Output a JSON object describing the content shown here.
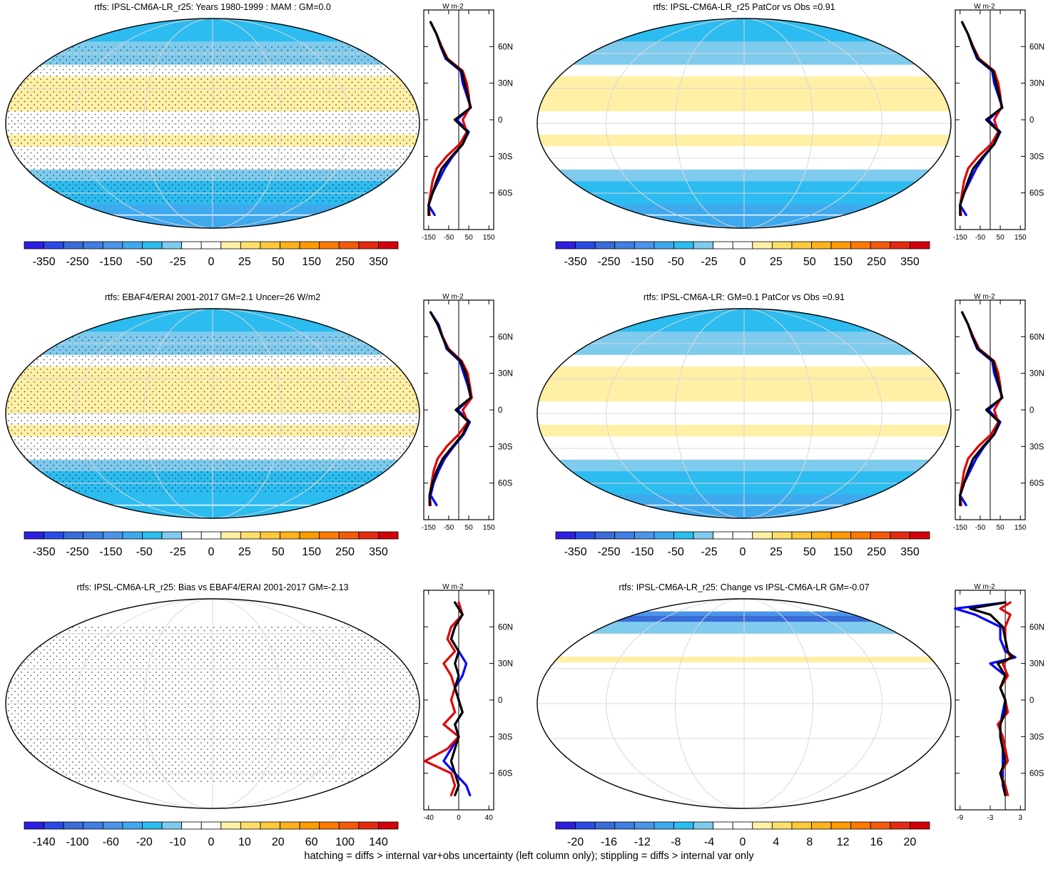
{
  "footer": "hatching = diffs > internal var+obs uncertainty (left column only); stippling = diffs > internal var only",
  "colormap": [
    "#2d1ee0",
    "#2a4ae6",
    "#3a6cd8",
    "#3f7fe4",
    "#4a95ea",
    "#3fa9ee",
    "#2cbcf0",
    "#7fcbee",
    "#ffffff",
    "#ffffff",
    "#fff0a6",
    "#ffdf6a",
    "#ffc93a",
    "#ffb21a",
    "#ff9a00",
    "#ff7a00",
    "#f45a0a",
    "#e52a12",
    "#d4000c"
  ],
  "latitude_ticks": [
    "60N",
    "30N",
    "0",
    "30S",
    "60S"
  ],
  "profile_unit": "W m-2",
  "charts": [
    {
      "title": "rtfs: IPSL-CM6A-LR_r25: Years 1980-1999 : MAM : GM=0.0",
      "colorbar_labels": [
        "-350",
        "-250",
        "-150",
        "-50",
        "-25",
        "0",
        "25",
        "50",
        "150",
        "250",
        "350"
      ],
      "profile_ticks": [
        "-150",
        "-50",
        "50",
        "150"
      ],
      "chart_data": {
        "type": "heatmap",
        "field": "rtfs",
        "overlay": "stippling and hatching",
        "zonal_mean": {
          "lat": [
            80,
            70,
            60,
            50,
            40,
            30,
            20,
            10,
            0,
            -10,
            -20,
            -30,
            -40,
            -50,
            -60,
            -70,
            -78
          ],
          "series": [
            {
              "name": "",
              "color": "#0000ff",
              "values": [
                -140,
                -110,
                -90,
                -65,
                10,
                20,
                40,
                60,
                -10,
                50,
                20,
                -30,
                -70,
                -100,
                -130,
                -150,
                -120
              ]
            },
            {
              "name": "",
              "color": "#e00000",
              "values": [
                -140,
                -110,
                -85,
                -55,
                20,
                40,
                50,
                55,
                20,
                40,
                5,
                -60,
                -110,
                -130,
                -140,
                -150,
                -145
              ]
            },
            {
              "name": "",
              "color": "#000000",
              "values": [
                -140,
                -110,
                -88,
                -60,
                15,
                30,
                45,
                60,
                -20,
                45,
                20,
                -35,
                -85,
                -110,
                -130,
                -150,
                -150
              ]
            }
          ]
        },
        "map_field": {
          "equatorial_band": 70,
          "polar": -240
        }
      }
    },
    {
      "title": "rtfs: IPSL-CM6A-LR_r25 PatCor vs Obs =0.91",
      "colorbar_labels": [
        "-350",
        "-250",
        "-150",
        "-50",
        "-25",
        "0",
        "25",
        "50",
        "150",
        "250",
        "350"
      ],
      "profile_ticks": [
        "-150",
        "-50",
        "50",
        "150"
      ],
      "chart_data": {
        "type": "heatmap",
        "field": "rtfs",
        "overlay": "none",
        "zonal_mean": {
          "lat": [
            80,
            70,
            60,
            50,
            40,
            30,
            20,
            10,
            0,
            -10,
            -20,
            -30,
            -40,
            -50,
            -60,
            -70,
            -78
          ],
          "series": [
            {
              "name": "",
              "color": "#0000ff",
              "values": [
                -140,
                -110,
                -90,
                -65,
                10,
                20,
                40,
                60,
                -10,
                50,
                20,
                -30,
                -70,
                -100,
                -130,
                -150,
                -120
              ]
            },
            {
              "name": "",
              "color": "#e00000",
              "values": [
                -140,
                -110,
                -85,
                -55,
                20,
                40,
                50,
                55,
                20,
                40,
                5,
                -60,
                -110,
                -130,
                -140,
                -150,
                -145
              ]
            },
            {
              "name": "",
              "color": "#000000",
              "values": [
                -140,
                -110,
                -88,
                -60,
                15,
                30,
                45,
                60,
                -20,
                45,
                20,
                -35,
                -85,
                -110,
                -130,
                -150,
                -150
              ]
            }
          ]
        },
        "map_field": {
          "equatorial_band": 70,
          "polar": -240
        }
      }
    },
    {
      "title": "rtfs: EBAF4/ERAI 2001-2017 GM=2.1 Uncer=26 W/m2",
      "colorbar_labels": [
        "-350",
        "-250",
        "-150",
        "-50",
        "-25",
        "0",
        "25",
        "50",
        "150",
        "250",
        "350"
      ],
      "profile_ticks": [
        "-150",
        "-50",
        "50",
        "150"
      ],
      "chart_data": {
        "type": "heatmap",
        "field": "rtfs",
        "overlay": "stippling and hatching",
        "zonal_mean": {
          "lat": [
            80,
            70,
            60,
            50,
            40,
            30,
            20,
            10,
            0,
            -10,
            -20,
            -30,
            -40,
            -50,
            -60,
            -70,
            -78
          ],
          "series": [
            {
              "name": "",
              "color": "#0000ff",
              "values": [
                -140,
                -100,
                -80,
                -60,
                5,
                25,
                45,
                60,
                -5,
                55,
                25,
                -25,
                -70,
                -100,
                -125,
                -140,
                -110
              ]
            },
            {
              "name": "",
              "color": "#e00000",
              "values": [
                -140,
                -105,
                -80,
                -50,
                15,
                45,
                55,
                65,
                20,
                45,
                0,
                -60,
                -105,
                -125,
                -135,
                -145,
                -140
              ]
            },
            {
              "name": "",
              "color": "#000000",
              "values": [
                -140,
                -105,
                -82,
                -55,
                10,
                35,
                50,
                60,
                -15,
                50,
                20,
                -30,
                -80,
                -110,
                -130,
                -145,
                -145
              ]
            }
          ]
        },
        "map_field": {
          "equatorial_band": 75,
          "polar": -240
        }
      }
    },
    {
      "title": "rtfs: IPSL-CM6A-LR: GM=0.1 PatCor vs Obs =0.91",
      "colorbar_labels": [
        "-350",
        "-250",
        "-150",
        "-50",
        "-25",
        "0",
        "25",
        "50",
        "150",
        "250",
        "350"
      ],
      "profile_ticks": [
        "-150",
        "-50",
        "50",
        "150"
      ],
      "chart_data": {
        "type": "heatmap",
        "field": "rtfs",
        "overlay": "none",
        "zonal_mean": {
          "lat": [
            80,
            70,
            60,
            50,
            40,
            30,
            20,
            10,
            0,
            -10,
            -20,
            -30,
            -40,
            -50,
            -60,
            -70,
            -78
          ],
          "series": [
            {
              "name": "",
              "color": "#0000ff",
              "values": [
                -140,
                -110,
                -90,
                -65,
                10,
                20,
                40,
                60,
                -10,
                50,
                20,
                -30,
                -70,
                -100,
                -130,
                -150,
                -120
              ]
            },
            {
              "name": "",
              "color": "#e00000",
              "values": [
                -140,
                -110,
                -85,
                -55,
                20,
                40,
                50,
                55,
                20,
                40,
                5,
                -60,
                -110,
                -130,
                -140,
                -150,
                -145
              ]
            },
            {
              "name": "",
              "color": "#000000",
              "values": [
                -140,
                -110,
                -88,
                -60,
                15,
                30,
                45,
                60,
                -20,
                45,
                20,
                -35,
                -85,
                -110,
                -130,
                -150,
                -150
              ]
            }
          ]
        },
        "map_field": {
          "equatorial_band": 70,
          "polar": -240
        }
      }
    },
    {
      "title": "rtfs: IPSL-CM6A-LR_r25: Bias vs EBAF4/ERAI 2001-2017 GM=-2.13",
      "colorbar_labels": [
        "-140",
        "-100",
        "-60",
        "-20",
        "-10",
        "0",
        "10",
        "20",
        "60",
        "100",
        "140"
      ],
      "profile_ticks": [
        "-40",
        "0",
        "40"
      ],
      "chart_data": {
        "type": "heatmap",
        "field": "rtfs bias",
        "overlay": "stippling and hatching",
        "zonal_mean": {
          "lat": [
            80,
            70,
            60,
            50,
            40,
            30,
            20,
            10,
            0,
            -10,
            -20,
            -30,
            -40,
            -50,
            -60,
            -70,
            -78
          ],
          "series": [
            {
              "name": "",
              "color": "#0000ff",
              "values": [
                -5,
                5,
                -5,
                -10,
                0,
                10,
                5,
                -5,
                0,
                5,
                -5,
                0,
                -10,
                -20,
                -5,
                10,
                15
              ]
            },
            {
              "name": "",
              "color": "#e00000",
              "values": [
                0,
                5,
                -10,
                -15,
                -5,
                -20,
                -10,
                -5,
                -10,
                -5,
                -20,
                0,
                -15,
                -45,
                -10,
                -5,
                -10
              ]
            },
            {
              "name": "",
              "color": "#000000",
              "values": [
                -5,
                5,
                -5,
                -10,
                0,
                -5,
                0,
                -5,
                0,
                5,
                -5,
                0,
                -5,
                -10,
                -5,
                0,
                -5
              ]
            }
          ]
        },
        "map_field": {
          "equatorial_band": 15,
          "polar": -40
        }
      }
    },
    {
      "title": "rtfs: IPSL-CM6A-LR_r25: Change vs IPSL-CM6A-LR GM=-0.07",
      "colorbar_labels": [
        "-20",
        "-16",
        "-12",
        "-8",
        "-4",
        "0",
        "4",
        "8",
        "12",
        "16",
        "20"
      ],
      "profile_ticks": [
        "-9",
        "-3",
        "3"
      ],
      "chart_data": {
        "type": "heatmap",
        "field": "rtfs change",
        "overlay": "none",
        "zonal_mean": {
          "lat": [
            80,
            75,
            70,
            60,
            50,
            40,
            35,
            30,
            20,
            10,
            0,
            -10,
            -20,
            -30,
            -40,
            -50,
            -60,
            -70,
            -78
          ],
          "series": [
            {
              "name": "",
              "color": "#0000ff",
              "values": [
                0,
                -10,
                -6,
                -1,
                -1,
                0,
                2,
                -3,
                0,
                -1,
                0,
                -0.5,
                -1,
                -1,
                -0.5,
                -0.5,
                -0.5,
                -0.5,
                0
              ]
            },
            {
              "name": "",
              "color": "#e00000",
              "values": [
                1,
                -1,
                1,
                0,
                0,
                0.5,
                1,
                -0.5,
                0.5,
                -1,
                0,
                0.5,
                -1.5,
                -0.5,
                0,
                0.5,
                -1,
                0,
                0.5
              ]
            },
            {
              "name": "",
              "color": "#000000",
              "values": [
                0,
                -7,
                -3,
                -0.5,
                0,
                0.5,
                1.5,
                -1.5,
                0,
                -1,
                0,
                0,
                -1,
                -1,
                -0.5,
                0,
                -1,
                -0.3,
                0
              ]
            }
          ]
        },
        "map_field": {
          "equatorial_band": 1.5,
          "polar": -4
        }
      }
    }
  ]
}
